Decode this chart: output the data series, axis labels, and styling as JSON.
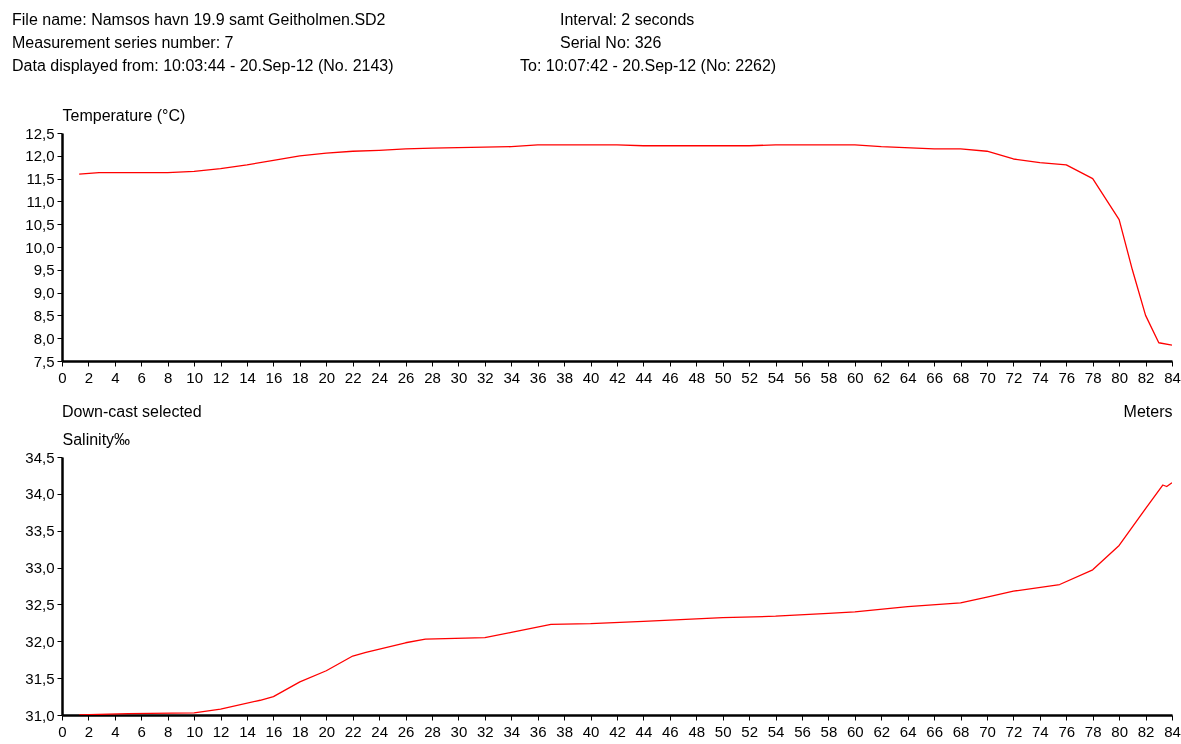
{
  "chart_data": [
    {
      "type": "line",
      "title": "File name: Namsos havn 19.9 samt Geitholmen.SD2",
      "annotations": [
        "Measurement series number: 7",
        "Data displayed from: 10:03:44 - 20.Sep-12 (No. 2143)",
        "Interval: 2 seconds",
        "Serial No: 326",
        "To: 10:07:42 - 20.Sep-12 (No: 2262)"
      ],
      "ylabel": "Temperature (°C)",
      "xlabel": "Meters",
      "grid": false,
      "marker": "none",
      "xlim": [
        0,
        84
      ],
      "xticks": [
        0,
        2,
        4,
        6,
        8,
        10,
        12,
        14,
        16,
        18,
        20,
        22,
        24,
        26,
        28,
        30,
        32,
        34,
        36,
        38,
        40,
        42,
        44,
        46,
        48,
        50,
        52,
        54,
        56,
        58,
        60,
        62,
        64,
        66,
        68,
        70,
        72,
        74,
        76,
        78,
        80,
        82,
        84
      ],
      "ylim": [
        7.5,
        12.5
      ],
      "yticks": [
        {
          "value": 7.5,
          "label": "7,5"
        },
        {
          "value": 8,
          "label": "8,0"
        },
        {
          "value": 8.5,
          "label": "8,5"
        },
        {
          "value": 9,
          "label": "9,0"
        },
        {
          "value": 9.5,
          "label": "9,5"
        },
        {
          "value": 10,
          "label": "10,0"
        },
        {
          "value": 10.5,
          "label": "10,5"
        },
        {
          "value": 11,
          "label": "11,0"
        },
        {
          "value": 11.5,
          "label": "11,5"
        },
        {
          "value": 12,
          "label": "12,0"
        },
        {
          "value": 12.5,
          "label": "12,5"
        }
      ],
      "series": [
        {
          "color": "#ff0000",
          "x": [
            1.3,
            2.8,
            8,
            10,
            12,
            14,
            16,
            18,
            20,
            22,
            24,
            26,
            28,
            34,
            36,
            42,
            44,
            52,
            54,
            60,
            62,
            66,
            68,
            70,
            72,
            74,
            76,
            78,
            80,
            81,
            82,
            83,
            84
          ],
          "values": [
            11.6,
            11.63,
            11.63,
            11.66,
            11.72,
            11.8,
            11.9,
            12.0,
            12.06,
            12.1,
            12.12,
            12.15,
            12.17,
            12.2,
            12.24,
            12.24,
            12.22,
            12.22,
            12.24,
            12.24,
            12.2,
            12.15,
            12.15,
            12.1,
            11.93,
            11.85,
            11.8,
            11.5,
            10.6,
            9.5,
            8.5,
            7.9,
            7.85
          ]
        }
      ]
    },
    {
      "type": "line",
      "annotations": [
        "Down-cast selected"
      ],
      "ylabel": "Salinity‰",
      "grid": false,
      "marker": "none",
      "xlim": [
        0,
        84
      ],
      "xticks": [
        0,
        2,
        4,
        6,
        8,
        10,
        12,
        14,
        16,
        18,
        20,
        22,
        24,
        26,
        28,
        30,
        32,
        34,
        36,
        38,
        40,
        42,
        44,
        46,
        48,
        50,
        52,
        54,
        56,
        58,
        60,
        62,
        64,
        66,
        68,
        70,
        72,
        74,
        76,
        78,
        80,
        82,
        84
      ],
      "ylim": [
        31,
        34.5
      ],
      "yticks": [
        {
          "value": 31,
          "label": "31,0"
        },
        {
          "value": 31.5,
          "label": "31,5"
        },
        {
          "value": 32,
          "label": "32,0"
        },
        {
          "value": 32.5,
          "label": "32,5"
        },
        {
          "value": 33,
          "label": "33,0"
        },
        {
          "value": 33.5,
          "label": "33,5"
        },
        {
          "value": 34,
          "label": "34,0"
        },
        {
          "value": 34.5,
          "label": "34,5"
        }
      ],
      "series": [
        {
          "color": "#ff0000",
          "x": [
            1.3,
            5,
            10,
            12,
            15,
            16,
            18,
            20,
            22,
            23,
            26,
            27.5,
            32,
            34,
            37,
            40,
            44,
            50,
            54,
            58,
            60,
            64,
            68,
            70,
            72,
            75.5,
            78,
            80,
            82,
            83.3,
            83.6,
            84
          ],
          "values": [
            31.0,
            31.02,
            31.03,
            31.08,
            31.2,
            31.25,
            31.45,
            31.6,
            31.8,
            31.85,
            31.98,
            32.03,
            32.05,
            32.12,
            32.23,
            32.24,
            32.27,
            32.32,
            32.34,
            32.38,
            32.4,
            32.47,
            32.52,
            32.6,
            32.68,
            32.77,
            32.97,
            33.3,
            33.8,
            34.12,
            34.1,
            34.15
          ]
        }
      ]
    }
  ]
}
